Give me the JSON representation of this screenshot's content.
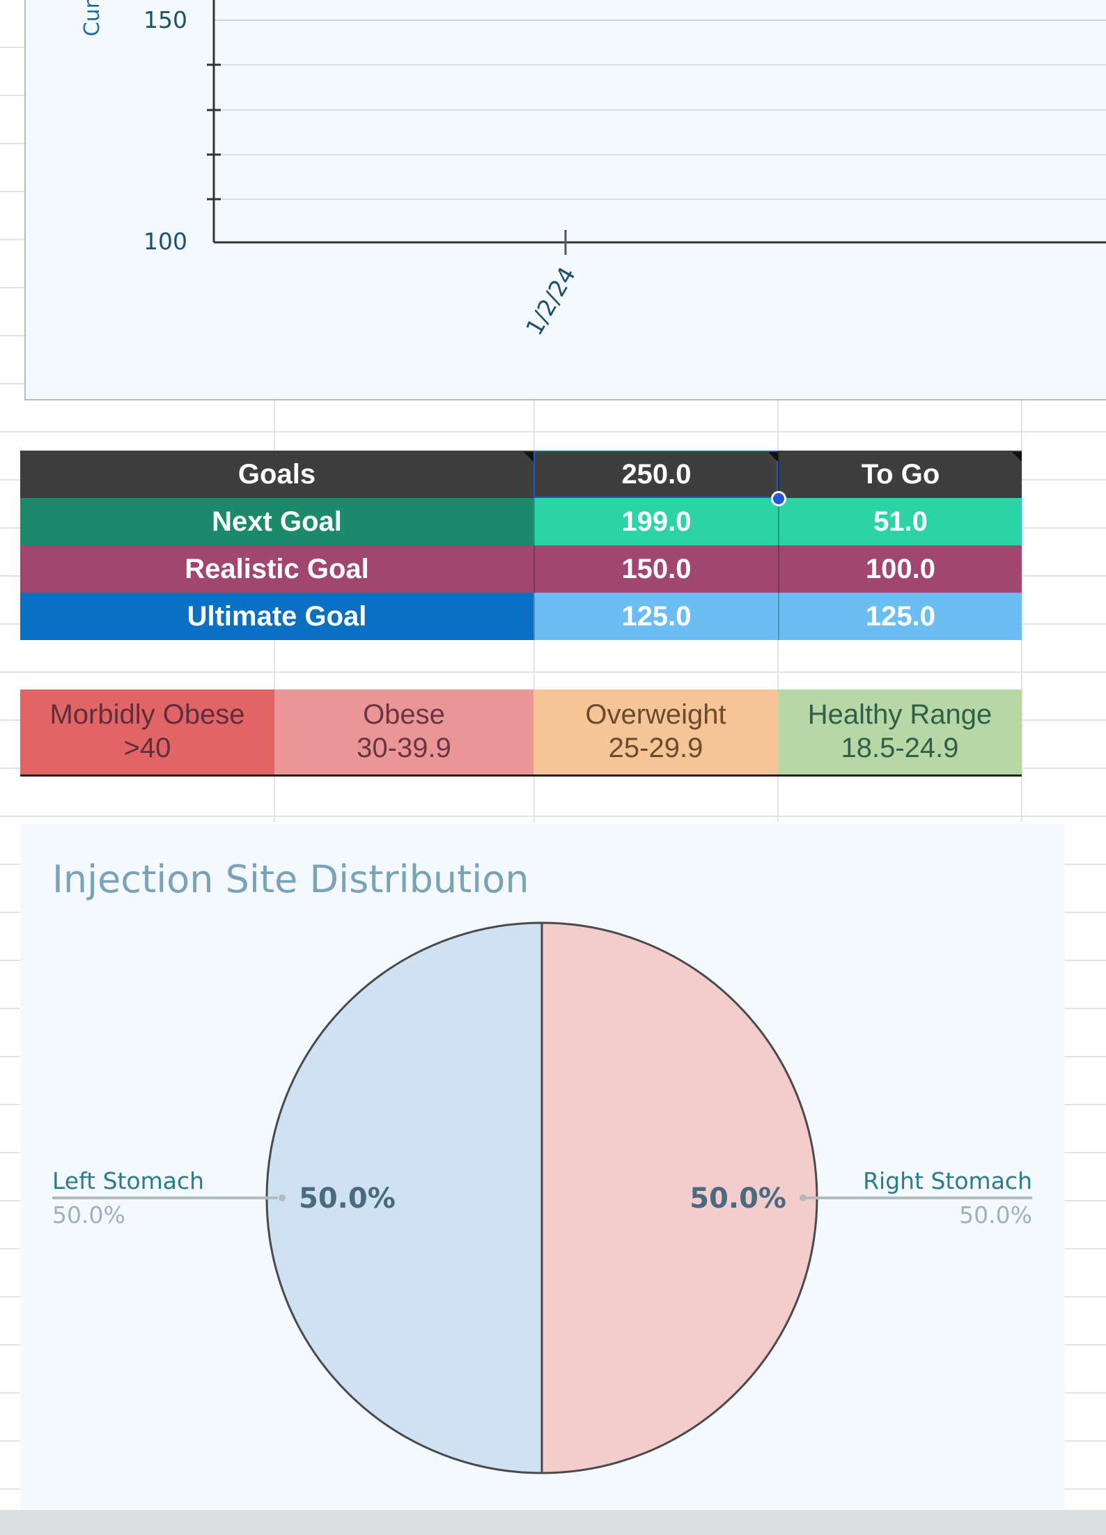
{
  "weight_chart": {
    "axis_title_fragment": "Cur",
    "y_ticks": [
      "150",
      "100"
    ],
    "x_tick": "1/2/24"
  },
  "goals": {
    "header": {
      "label": "Goals",
      "value": "250.0",
      "to_go": "To Go",
      "color": "#3e3e3e"
    },
    "rows": [
      {
        "label": "Next Goal",
        "value": "199.0",
        "to_go": "51.0",
        "label_color": "#1b8a6b",
        "value_color": "#2ad4a7"
      },
      {
        "label": "Realistic Goal",
        "value": "150.0",
        "to_go": "100.0",
        "label_color": "#a0466f",
        "value_color": "#a0466f"
      },
      {
        "label": "Ultimate Goal",
        "value": "125.0",
        "to_go": "125.0",
        "label_color": "#0b6fc4",
        "value_color": "#6dbdf5"
      }
    ]
  },
  "bmi_ranges": [
    {
      "name": "Morbidly Obese",
      "range": ">40",
      "color": "#e26464",
      "text_color": "#5d2f3e"
    },
    {
      "name": "Obese",
      "range": "30-39.9",
      "color": "#eb9696",
      "text_color": "#6a3642"
    },
    {
      "name": "Overweight",
      "range": "25-29.9",
      "color": "#f6c595",
      "text_color": "#6b4b2f"
    },
    {
      "name": "Healthy Range",
      "range": "18.5-24.9",
      "color": "#b7d8a5",
      "text_color": "#2e5f48"
    }
  ],
  "chart_data": {
    "type": "pie",
    "title": "Injection Site Distribution",
    "labels": [
      "Left Stomach",
      "Right Stomach"
    ],
    "values": [
      50.0,
      50.0
    ],
    "percent_labels": [
      "50.0%",
      "50.0%"
    ],
    "colors": [
      "#cfe2f3",
      "#f4cccc"
    ]
  }
}
